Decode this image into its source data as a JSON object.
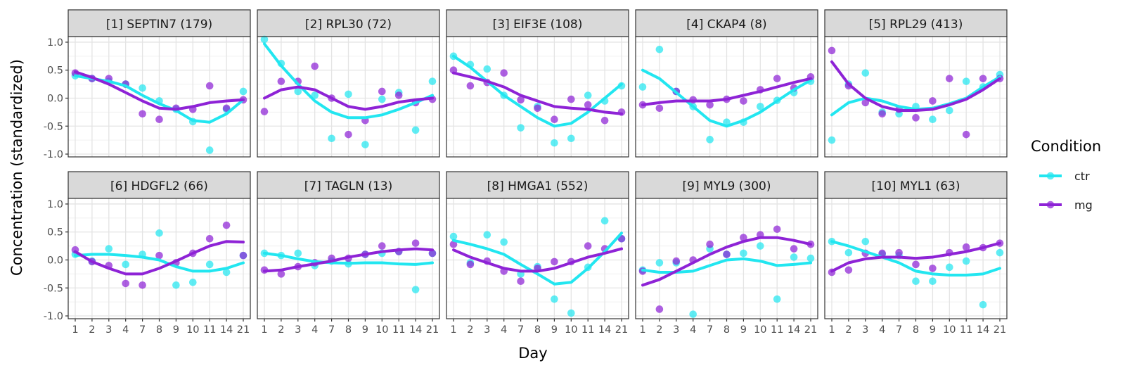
{
  "chart_data": {
    "type": "scatter",
    "xlabel": "Day",
    "ylabel": "Concentration (standardized)",
    "x_categories": [
      "1",
      "2",
      "3",
      "4",
      "7",
      "8",
      "9",
      "10",
      "11",
      "14",
      "21"
    ],
    "yticks": [
      1.0,
      0.5,
      0.0,
      -0.5,
      -1.0
    ],
    "ytick_labels": [
      "1.0",
      "0.5",
      "0.0",
      "-0.5",
      "-1.0"
    ],
    "ylim": [
      -1.05,
      1.1
    ],
    "grid": true,
    "legend": {
      "title": "Condition",
      "placement": "right",
      "entries": [
        {
          "name": "ctr",
          "color": "#22e6f0"
        },
        {
          "name": "mg",
          "color": "#8e23d6"
        }
      ]
    },
    "panels": [
      {
        "title": "[1] SEPTIN7 (179)",
        "ctr_points": [
          0.4,
          0.35,
          0.3,
          0.25,
          0.18,
          -0.05,
          -0.2,
          -0.42,
          -0.93,
          -0.2,
          0.12
        ],
        "mg_points": [
          0.45,
          0.35,
          0.35,
          0.25,
          -0.28,
          -0.38,
          -0.18,
          -0.2,
          0.22,
          -0.18,
          -0.03
        ],
        "ctr_fit": [
          0.4,
          0.35,
          0.3,
          0.22,
          0.05,
          -0.1,
          -0.22,
          -0.4,
          -0.43,
          -0.28,
          -0.03
        ],
        "mg_fit": [
          0.47,
          0.37,
          0.25,
          0.1,
          -0.05,
          -0.18,
          -0.2,
          -0.15,
          -0.08,
          -0.05,
          -0.03
        ]
      },
      {
        "title": "[2] RPL30 (72)",
        "ctr_points": [
          1.05,
          0.62,
          0.12,
          0.05,
          -0.72,
          0.07,
          -0.83,
          -0.02,
          0.1,
          -0.57,
          0.3
        ],
        "mg_points": [
          -0.24,
          0.3,
          0.3,
          0.57,
          0.0,
          -0.65,
          -0.4,
          0.12,
          0.05,
          -0.08,
          -0.02
        ],
        "ctr_fit": [
          0.97,
          0.58,
          0.25,
          -0.05,
          -0.25,
          -0.35,
          -0.35,
          -0.3,
          -0.2,
          -0.08,
          0.05
        ],
        "mg_fit": [
          0.0,
          0.15,
          0.2,
          0.15,
          0.0,
          -0.15,
          -0.2,
          -0.15,
          -0.07,
          -0.03,
          0.0
        ]
      },
      {
        "title": "[3] EIF3E (108)",
        "ctr_points": [
          0.75,
          0.6,
          0.52,
          0.05,
          -0.53,
          -0.15,
          -0.8,
          -0.72,
          0.05,
          -0.05,
          0.22
        ],
        "mg_points": [
          0.5,
          0.22,
          0.28,
          0.45,
          -0.03,
          -0.18,
          -0.38,
          -0.02,
          -0.12,
          -0.4,
          -0.25
        ],
        "ctr_fit": [
          0.75,
          0.55,
          0.3,
          0.05,
          -0.15,
          -0.35,
          -0.5,
          -0.45,
          -0.25,
          0.0,
          0.25
        ],
        "mg_fit": [
          0.45,
          0.38,
          0.3,
          0.2,
          0.05,
          -0.05,
          -0.15,
          -0.18,
          -0.2,
          -0.25,
          -0.28
        ]
      },
      {
        "title": "[4] CKAP4 (8)",
        "ctr_points": [
          0.2,
          0.87,
          0.12,
          -0.15,
          -0.74,
          -0.43,
          -0.43,
          -0.15,
          -0.04,
          0.1,
          0.3
        ],
        "mg_points": [
          -0.12,
          -0.18,
          0.12,
          -0.03,
          -0.12,
          -0.02,
          -0.05,
          0.15,
          0.35,
          0.18,
          0.38
        ],
        "ctr_fit": [
          0.5,
          0.35,
          0.1,
          -0.15,
          -0.4,
          -0.5,
          -0.4,
          -0.25,
          -0.05,
          0.15,
          0.32
        ],
        "mg_fit": [
          -0.12,
          -0.08,
          -0.05,
          -0.05,
          -0.05,
          -0.02,
          0.05,
          0.12,
          0.2,
          0.28,
          0.35
        ]
      },
      {
        "title": "[5] RPL29 (413)",
        "ctr_points": [
          -0.75,
          0.25,
          0.45,
          -0.25,
          -0.28,
          -0.15,
          -0.38,
          -0.22,
          0.3,
          0.2,
          0.42
        ],
        "mg_points": [
          0.85,
          0.22,
          -0.08,
          -0.28,
          -0.2,
          -0.35,
          -0.05,
          0.35,
          -0.65,
          0.35,
          0.35
        ],
        "ctr_fit": [
          -0.3,
          -0.08,
          0.0,
          -0.05,
          -0.15,
          -0.2,
          -0.18,
          -0.1,
          0.0,
          0.2,
          0.38
        ],
        "mg_fit": [
          0.65,
          0.25,
          0.0,
          -0.15,
          -0.22,
          -0.22,
          -0.2,
          -0.12,
          -0.02,
          0.15,
          0.35
        ]
      },
      {
        "title": "[6] HDGFL2 (66)",
        "ctr_points": [
          0.1,
          -0.02,
          0.2,
          -0.08,
          0.1,
          0.48,
          -0.45,
          -0.4,
          -0.08,
          -0.22,
          0.08
        ],
        "mg_points": [
          0.18,
          -0.03,
          -0.1,
          -0.42,
          -0.45,
          0.08,
          -0.05,
          0.12,
          0.38,
          0.62,
          0.08
        ],
        "ctr_fit": [
          0.08,
          0.1,
          0.1,
          0.08,
          0.05,
          0.0,
          -0.12,
          -0.2,
          -0.2,
          -0.15,
          -0.05
        ],
        "mg_fit": [
          0.15,
          -0.03,
          -0.15,
          -0.25,
          -0.25,
          -0.15,
          -0.02,
          0.12,
          0.25,
          0.33,
          0.32
        ]
      },
      {
        "title": "[7] TAGLN (13)",
        "ctr_points": [
          0.12,
          0.08,
          0.12,
          -0.1,
          -0.02,
          -0.07,
          0.1,
          0.12,
          0.15,
          -0.53,
          0.12
        ],
        "mg_points": [
          -0.18,
          -0.25,
          -0.12,
          -0.05,
          0.03,
          0.03,
          0.1,
          0.25,
          0.15,
          0.3,
          0.12
        ],
        "ctr_fit": [
          0.12,
          0.08,
          0.02,
          -0.03,
          -0.05,
          -0.06,
          -0.05,
          -0.05,
          -0.07,
          -0.08,
          -0.05
        ],
        "mg_fit": [
          -0.2,
          -0.18,
          -0.12,
          -0.07,
          -0.02,
          0.05,
          0.1,
          0.15,
          0.18,
          0.2,
          0.18
        ]
      },
      {
        "title": "[8] HMGA1 (552)",
        "ctr_points": [
          0.42,
          -0.05,
          0.45,
          0.32,
          -0.25,
          -0.12,
          -0.7,
          -0.95,
          -0.13,
          0.7,
          0.38
        ],
        "mg_points": [
          0.28,
          -0.08,
          -0.02,
          -0.2,
          -0.38,
          -0.15,
          -0.03,
          -0.03,
          0.25,
          0.2,
          0.38
        ],
        "ctr_fit": [
          0.35,
          0.28,
          0.2,
          0.1,
          -0.08,
          -0.25,
          -0.43,
          -0.4,
          -0.15,
          0.15,
          0.48
        ],
        "mg_fit": [
          0.18,
          0.05,
          -0.05,
          -0.15,
          -0.2,
          -0.2,
          -0.15,
          -0.05,
          0.05,
          0.12,
          0.2
        ]
      },
      {
        "title": "[9] MYL9 (300)",
        "ctr_points": [
          -0.18,
          -0.05,
          -0.05,
          -0.97,
          0.2,
          0.1,
          0.12,
          0.25,
          -0.7,
          0.05,
          0.03
        ],
        "mg_points": [
          -0.2,
          -0.88,
          -0.02,
          0.0,
          0.28,
          0.1,
          0.4,
          0.45,
          0.55,
          0.2,
          0.28
        ],
        "ctr_fit": [
          -0.18,
          -0.22,
          -0.22,
          -0.2,
          -0.1,
          0.0,
          0.02,
          -0.02,
          -0.1,
          -0.08,
          -0.05
        ],
        "mg_fit": [
          -0.45,
          -0.35,
          -0.2,
          -0.05,
          0.1,
          0.23,
          0.33,
          0.4,
          0.4,
          0.35,
          0.28
        ]
      },
      {
        "title": "[10] MYL1 (63)",
        "ctr_points": [
          0.33,
          0.13,
          0.33,
          0.1,
          0.08,
          -0.38,
          -0.38,
          -0.13,
          -0.02,
          -0.8,
          0.13
        ],
        "mg_points": [
          -0.22,
          -0.18,
          0.12,
          0.12,
          0.13,
          -0.08,
          -0.15,
          0.13,
          0.23,
          0.22,
          0.3
        ],
        "ctr_fit": [
          0.33,
          0.25,
          0.15,
          0.05,
          -0.05,
          -0.2,
          -0.25,
          -0.27,
          -0.27,
          -0.25,
          -0.15
        ],
        "mg_fit": [
          -0.2,
          -0.05,
          0.02,
          0.05,
          0.05,
          0.03,
          0.05,
          0.1,
          0.15,
          0.22,
          0.3
        ]
      }
    ]
  }
}
